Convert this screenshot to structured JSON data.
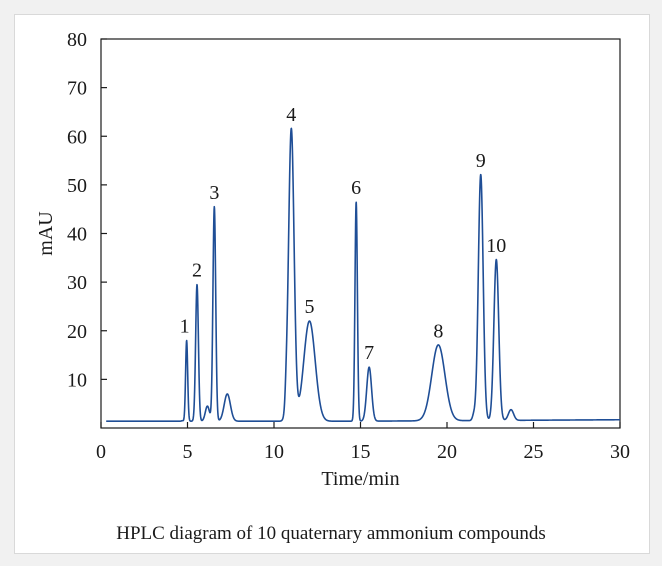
{
  "caption": "HPLC diagram of 10 quaternary ammonium compounds",
  "chart_data": {
    "type": "line",
    "title": "",
    "xlabel": "Time/min",
    "ylabel": "mAU",
    "xlim": [
      0,
      30
    ],
    "ylim": [
      0,
      80
    ],
    "xticks": [
      0,
      5,
      10,
      15,
      20,
      25,
      30
    ],
    "yticks": [
      10,
      20,
      30,
      40,
      50,
      60,
      70,
      80
    ],
    "grid": false,
    "line_color": "#1f4e96",
    "baseline": 1.4,
    "peaks": [
      {
        "label": "1",
        "rt": 4.95,
        "height": 18.0,
        "width": 0.06
      },
      {
        "label": "2",
        "rt": 5.55,
        "height": 29.5,
        "width": 0.08
      },
      {
        "label": "3",
        "rt": 6.55,
        "height": 45.5,
        "width": 0.08
      },
      {
        "label": "4",
        "rt": 11.0,
        "height": 61.5,
        "width": 0.16
      },
      {
        "label": "5",
        "rt": 12.05,
        "height": 22.0,
        "width": 0.33
      },
      {
        "label": "6",
        "rt": 14.75,
        "height": 46.5,
        "width": 0.07
      },
      {
        "label": "7",
        "rt": 15.5,
        "height": 12.5,
        "width": 0.14
      },
      {
        "label": "8",
        "rt": 19.5,
        "height": 17.0,
        "width": 0.38
      },
      {
        "label": "9",
        "rt": 21.95,
        "height": 52.0,
        "width": 0.14
      },
      {
        "label": "10",
        "rt": 22.85,
        "height": 34.5,
        "width": 0.14
      }
    ],
    "minor_peaks": [
      {
        "rt": 6.15,
        "height": 4.5,
        "width": 0.12
      },
      {
        "rt": 7.3,
        "height": 7.0,
        "width": 0.18
      },
      {
        "rt": 10.7,
        "height": 3.5,
        "width": 0.06
      },
      {
        "rt": 23.7,
        "height": 3.6,
        "width": 0.15
      },
      {
        "rt": 4.7,
        "height": 1.5,
        "width": 0.05
      },
      {
        "rt": 21.55,
        "height": 2.5,
        "width": 0.08
      }
    ]
  }
}
